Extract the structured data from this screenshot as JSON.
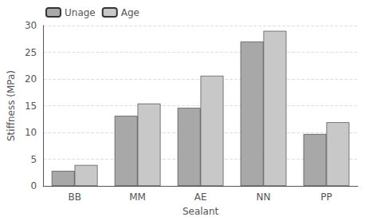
{
  "chart_data": {
    "type": "bar",
    "categories": [
      "BB",
      "MM",
      "AE",
      "NN",
      "PP"
    ],
    "series": [
      {
        "name": "Unage",
        "color": "#a8a8a8",
        "values": [
          2.8,
          13.1,
          14.6,
          27.0,
          9.7
        ]
      },
      {
        "name": "Age",
        "color": "#c8c8c8",
        "values": [
          3.9,
          15.4,
          20.6,
          29.0,
          11.9
        ]
      }
    ],
    "xlabel": "Sealant",
    "ylabel": "Stiffness (MPa)",
    "ylim": [
      0,
      30
    ],
    "yticks": [
      0,
      5,
      10,
      15,
      20,
      25,
      30
    ],
    "grid": true,
    "legend": "upper left"
  }
}
